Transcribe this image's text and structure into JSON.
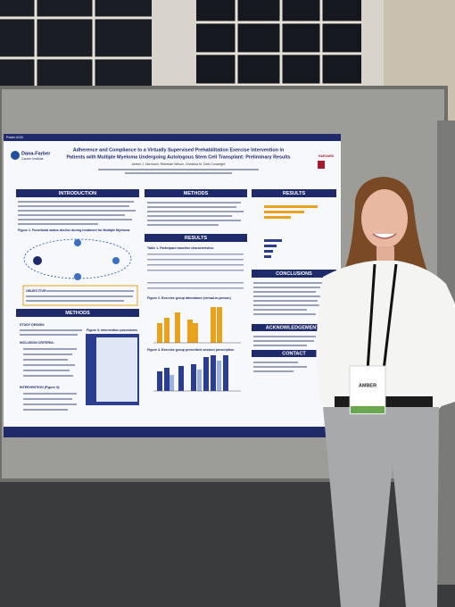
{
  "poster": {
    "number": "Poster #134",
    "logo": "Dana-Farber",
    "logo_sub": "Cancer Institute",
    "partner": "HARVARD",
    "title": "Adherence and Compliance to a Virtually Supervised Prehabilitation Exercise Intervention in",
    "title_line2": "Patients with Multiple Myeloma Undergoing Autologous Stem Cell Transplant: Preliminary Results",
    "authors": "Amber J. Normann, Rebekah Wilson, Christina M. Dieli-Conwright",
    "sections": {
      "introduction": "INTRODUCTION",
      "methods": "METHODS",
      "results": "RESULTS",
      "conclusions": "CONCLUSIONS",
      "acknowledgements": "ACKNOWLEDGEMENTS",
      "contact": "CONTACT"
    },
    "objective": "OBJECTIVE:",
    "figures": {
      "fig1": "Figure 1. Functional status decline during treatment for Multiple Myeloma",
      "table1": "Table 1. Participant baseline characteristics",
      "fig2": "Figure 2. Exercise group attendance (virtual-in-person)",
      "fig3": "Figure 3. Intervention procedures",
      "fig4": "Figure 4. Exercise group prescribed session prescription"
    },
    "methods_items": [
      "STUDY DESIGN:",
      "INCLUSION CRITERIA:",
      "INTERVENTION (Figure 3):"
    ]
  },
  "badge": {
    "name": "AMBER"
  }
}
